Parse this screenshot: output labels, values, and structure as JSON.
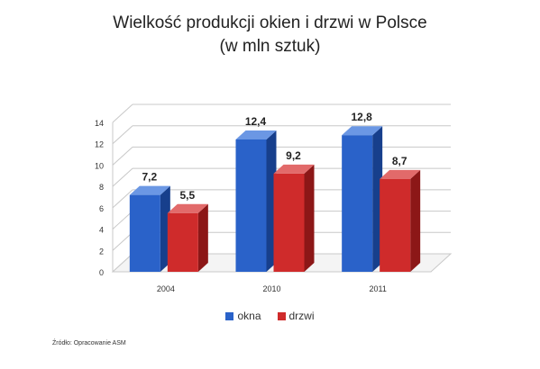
{
  "title": "Wielkość produkcji okien i drzwi w Polsce",
  "subtitle": "(w mln sztuk)",
  "source": "Źródło: Opracowanie ASM",
  "colors": {
    "okna": "#2a62c9",
    "okna_dark": "#173f8c",
    "okna_top": "#6b97e4",
    "drzwi": "#cf2b2b",
    "drzwi_dark": "#8c1717",
    "drzwi_top": "#e26a6a"
  },
  "chart_data": {
    "type": "bar",
    "categories": [
      "2004",
      "2010",
      "2011"
    ],
    "series": [
      {
        "name": "okna",
        "values": [
          7.2,
          12.4,
          12.8
        ],
        "labels": [
          "7,2",
          "12,4",
          "12,8"
        ]
      },
      {
        "name": "drzwi",
        "values": [
          5.5,
          9.2,
          8.7
        ],
        "labels": [
          "5,5",
          "9,2",
          "8,7"
        ]
      }
    ],
    "yticks": [
      "0",
      "2",
      "4",
      "6",
      "8",
      "10",
      "12",
      "14"
    ],
    "ylim": [
      0,
      14
    ],
    "grid": true,
    "legend_position": "bottom"
  }
}
